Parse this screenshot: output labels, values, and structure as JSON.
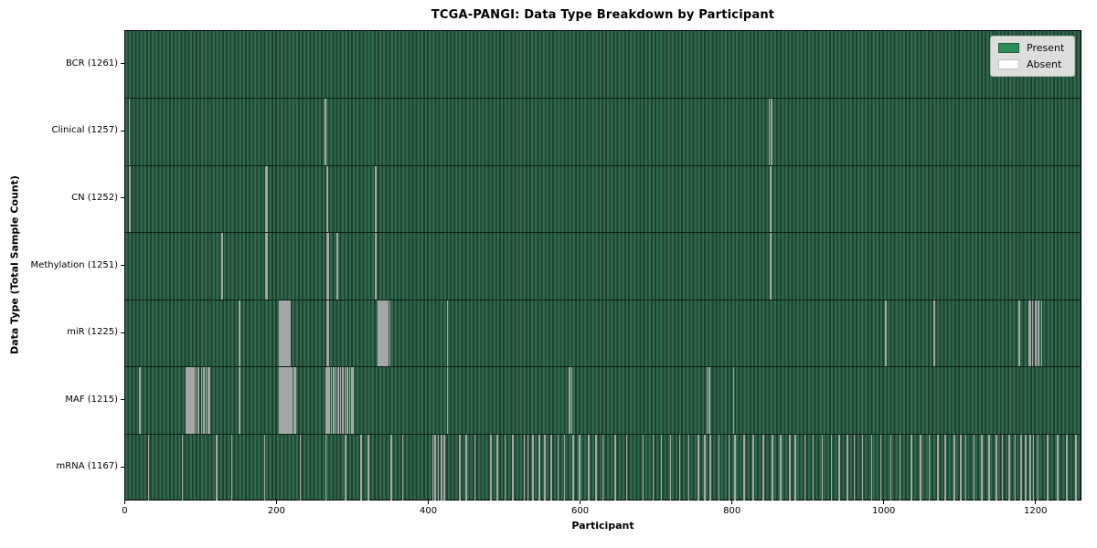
{
  "title": "TCGA-PANGI: Data Type Breakdown by Participant",
  "axes": {
    "xlabel": "Participant",
    "ylabel": "Data Type (Total Sample Count)"
  },
  "legend": {
    "items": [
      {
        "label": "Present",
        "color": "#2e8b57"
      },
      {
        "label": "Absent",
        "color": "#ffffff"
      }
    ]
  },
  "colors": {
    "present": "#2e8b57",
    "absent": "#ffffff",
    "bar_stripe_light": "#2f6a4d",
    "bar_stripe_dark": "#1f422f",
    "absent_rendered": "#a6a6a6",
    "legend_bg": "#dcdedc"
  },
  "chart_data": {
    "type": "heatmap",
    "title": "TCGA-PANGI: Data Type Breakdown by Participant",
    "xlabel": "Participant",
    "ylabel": "Data Type (Total Sample Count)",
    "x_ticks": [
      0,
      200,
      400,
      600,
      800,
      1000,
      1200
    ],
    "x_range": [
      0,
      1261
    ],
    "n_participants": 1261,
    "cell_values": {
      "present": 1,
      "absent": 0
    },
    "legend_position": "upper right",
    "rows": [
      {
        "label": "BCR (1261)",
        "data_type": "BCR",
        "present_count": 1261,
        "absent_count": 0,
        "absent_participants_approx": []
      },
      {
        "label": "Clinical (1257)",
        "data_type": "Clinical",
        "present_count": 1257,
        "absent_count": 4,
        "absent_participants_approx": [
          5,
          263,
          848,
          851
        ]
      },
      {
        "label": "CN (1252)",
        "data_type": "CN",
        "present_count": 1252,
        "absent_count": 9,
        "absent_participants_approx": [
          5,
          6,
          185,
          186,
          265,
          266,
          329,
          330,
          850
        ]
      },
      {
        "label": "Methylation (1251)",
        "data_type": "Methylation",
        "present_count": 1251,
        "absent_count": 10,
        "absent_participants_approx": [
          127,
          128,
          185,
          186,
          266,
          267,
          279,
          329,
          330,
          850
        ]
      },
      {
        "label": "miR (1225)",
        "data_type": "miR",
        "present_count": 1225,
        "absent_count": 36,
        "absent_participants_approx": [
          150,
          203,
          204,
          205,
          206,
          207,
          208,
          210,
          212,
          214,
          216,
          266,
          267,
          333,
          334,
          335,
          336,
          338,
          340,
          342,
          344,
          346,
          348,
          424,
          1001,
          1002,
          1065,
          1066,
          1177,
          1178,
          1191,
          1192,
          1195,
          1199,
          1203,
          1207
        ]
      },
      {
        "label": "MAF (1215)",
        "data_type": "MAF",
        "present_count": 1215,
        "absent_count": 46,
        "absent_participants_approx": [
          19,
          80,
          82,
          84,
          86,
          88,
          90,
          93,
          96,
          100,
          103,
          106,
          109,
          111,
          150,
          203,
          205,
          207,
          209,
          211,
          213,
          215,
          217,
          219,
          222,
          224,
          264,
          266,
          268,
          271,
          274,
          277,
          280,
          283,
          286,
          289,
          292,
          295,
          298,
          300,
          424,
          585,
          588,
          766,
          769,
          801
        ]
      },
      {
        "label": "mRNA (1167)",
        "data_type": "mRNA",
        "present_count": 1167,
        "absent_count": 94,
        "absent_participants_approx": [
          30,
          75,
          120,
          140,
          183,
          230,
          264,
          290,
          310,
          320,
          350,
          365,
          405,
          408,
          412,
          416,
          420,
          440,
          449,
          460,
          481,
          490,
          500,
          510,
          525,
          530,
          537,
          545,
          552,
          561,
          570,
          578,
          590,
          598,
          610,
          620,
          629,
          645,
          660,
          682,
          695,
          706,
          718,
          730,
          742,
          755,
          763,
          770,
          782,
          795,
          803,
          815,
          827,
          840,
          852,
          863,
          875,
          882,
          895,
          906,
          918,
          930,
          940,
          951,
          960,
          971,
          983,
          995,
          1008,
          1020,
          1035,
          1047,
          1059,
          1070,
          1080,
          1092,
          1100,
          1107,
          1118,
          1128,
          1138,
          1147,
          1155,
          1164,
          1172,
          1180,
          1186,
          1192,
          1196,
          1202,
          1215,
          1228,
          1240,
          1252
        ]
      }
    ]
  }
}
